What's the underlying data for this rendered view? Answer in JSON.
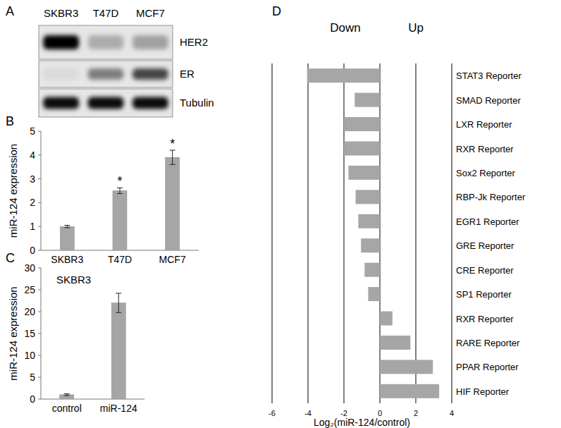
{
  "chart_data": [
    {
      "type": "blot",
      "panel": "A",
      "categories": [
        "SKBR3",
        "T47D",
        "MCF7"
      ],
      "series": [
        {
          "name": "HER2",
          "color": "#000000",
          "values": [
            1.0,
            0.25,
            0.3
          ]
        },
        {
          "name": "ER",
          "color": "#000000",
          "values": [
            0.05,
            0.45,
            0.7
          ]
        },
        {
          "name": "Tubulin",
          "color": "#000000",
          "values": [
            0.95,
            0.95,
            0.95
          ]
        }
      ]
    },
    {
      "type": "bar",
      "panel": "B",
      "categories": [
        "SKBR3",
        "T47D",
        "MCF7"
      ],
      "values": [
        1.0,
        2.5,
        3.9
      ],
      "errors": [
        0.05,
        0.12,
        0.3
      ],
      "annotations": [
        null,
        "*",
        "*"
      ],
      "y_label": "miR-124 expression",
      "color": "#a6a6a6",
      "ylim": [
        0,
        5
      ],
      "yticks": [
        0,
        1,
        2,
        3,
        4,
        5
      ]
    },
    {
      "type": "bar",
      "panel": "C",
      "annotation": "SKBR3",
      "categories": [
        "control",
        "miR-124"
      ],
      "values": [
        1.0,
        22.0
      ],
      "errors": [
        0.2,
        2.2
      ],
      "y_label": "miR-124 expression",
      "color": "#a6a6a6",
      "ylim": [
        0,
        30
      ],
      "yticks": [
        0,
        5,
        10,
        15,
        20,
        25,
        30
      ]
    },
    {
      "type": "bar",
      "panel": "D",
      "orientation": "horizontal",
      "grid": true,
      "categories": [
        "STAT3 Reporter",
        "SMAD Reporter",
        "LXR Reporter",
        "RXR Reporter",
        "Sox2 Reporter",
        "RBP-Jk Reporter",
        "EGR1 Reporter",
        "GRE Reporter",
        "CRE Reporter",
        "SP1 Reporter",
        "RXR Reporter",
        "RARE Reporter",
        "PPAR Reporter",
        "HIF Reporter"
      ],
      "values": [
        -4.05,
        -1.4,
        -2.0,
        -2.0,
        -1.75,
        -1.35,
        -1.2,
        -1.05,
        -0.85,
        -0.65,
        0.7,
        1.7,
        2.95,
        3.3
      ],
      "direction_labels": {
        "negative": "Down",
        "positive": "Up"
      },
      "x_label": "Log₂(miR-124/control)",
      "color": "#a6a6a6",
      "xlim": [
        -6,
        4
      ],
      "xticks": [
        -6,
        -4,
        -2,
        0,
        2,
        4
      ]
    }
  ]
}
